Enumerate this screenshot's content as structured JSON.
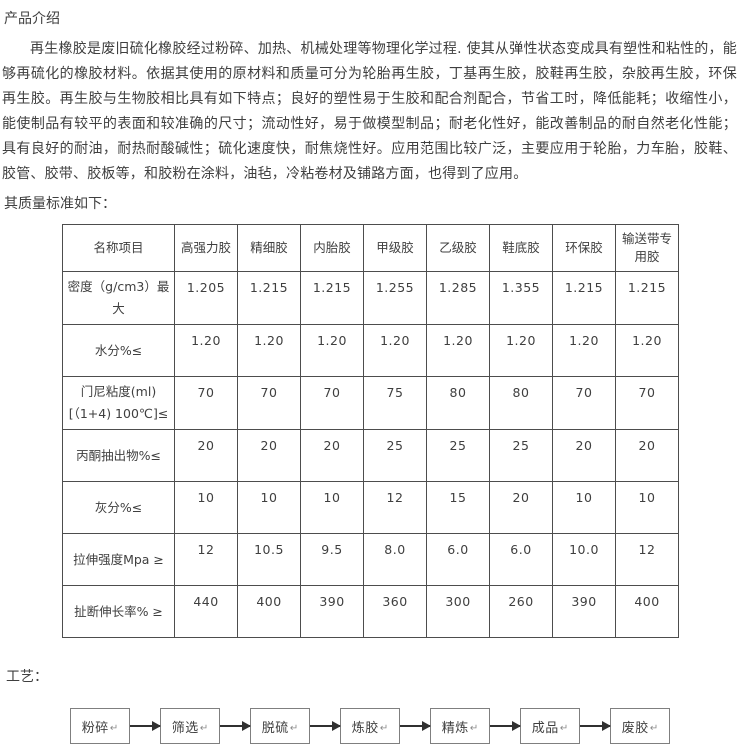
{
  "page": {
    "title": "产品介绍",
    "intro": "再生橡胶是废旧硫化橡胶经过粉碎、加热、机械处理等物理化学过程. 使其从弹性状态变成具有塑性和粘性的，能够再硫化的橡胶材料。依据其使用的原材料和质量可分为轮胎再生胶，丁基再生胶，胶鞋再生胶，杂胶再生胶，环保再生胶。再生胶与生物胶相比具有如下特点；良好的塑性易于生胶和配合剂配合，节省工时，降低能耗；收缩性小，能使制品有较平的表面和较准确的尺寸；流动性好，易于做模型制品；耐老化性好，能改善制品的耐自然老化性能；具有良好的耐油，耐热耐酸碱性；硫化速度快，耐焦烧性好。应用范围比较广泛，主要应用于轮胎，力车胎，胶鞋、胶管、胶带、胶板等，和胶粉在涂料，油毡，冷粘卷材及铺路方面，也得到了应用。",
    "standards_label": "其质量标准如下：",
    "process_label": "工艺："
  },
  "table": {
    "headers": [
      "名称项目",
      "高强力胶",
      "精细胶",
      "内胎胶",
      "甲级胶",
      "乙级胶",
      "鞋底胶",
      "环保胶",
      "输送带专用胶"
    ],
    "rows": [
      {
        "label": "密度（g/cm3）最大",
        "values": [
          "1.205",
          "1.215",
          "1.215",
          "1.255",
          "1.285",
          "1.355",
          "1.215",
          "1.215"
        ]
      },
      {
        "label": "水分%≤",
        "values": [
          "1.20",
          "1.20",
          "1.20",
          "1.20",
          "1.20",
          "1.20",
          "1.20",
          "1.20"
        ]
      },
      {
        "label": "门尼粘度(ml)[（1+4) 100℃]≤",
        "values": [
          "70",
          "70",
          "70",
          "75",
          "80",
          "80",
          "70",
          "70"
        ]
      },
      {
        "label": "丙酮抽出物%≤",
        "values": [
          "20",
          "20",
          "20",
          "25",
          "25",
          "25",
          "20",
          "20"
        ]
      },
      {
        "label": "灰分%≤",
        "values": [
          "10",
          "10",
          "10",
          "12",
          "15",
          "20",
          "10",
          "10"
        ]
      },
      {
        "label": "拉伸强度Mpa ≥",
        "values": [
          "12",
          "10.5",
          "9.5",
          "8.0",
          "6.0",
          "6.0",
          "10.0",
          "12"
        ]
      },
      {
        "label": "扯断伸长率% ≥",
        "values": [
          "440",
          "400",
          "390",
          "360",
          "300",
          "260",
          "390",
          "400"
        ]
      }
    ]
  },
  "flow": {
    "steps": [
      "粉碎",
      "筛选",
      "脱硫",
      "炼胶",
      "精炼",
      "成品",
      "废胶"
    ],
    "return_mark": "↵"
  },
  "colors": {
    "text": "#3f3f3f",
    "table_border": "#4d4d4d",
    "flow_box_border": "#7f7f7f",
    "arrow": "#303030"
  }
}
